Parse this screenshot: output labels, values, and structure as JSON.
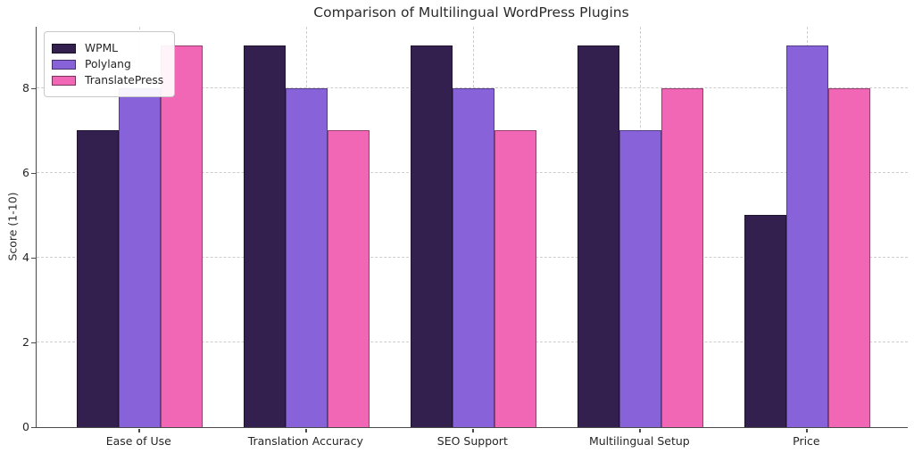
{
  "chart_data": {
    "type": "bar",
    "title": "Comparison of Multilingual WordPress Plugins",
    "xlabel": "",
    "ylabel": "Score (1-10)",
    "categories": [
      "Ease of Use",
      "Translation Accuracy",
      "SEO Support",
      "Multilingual Setup",
      "Price"
    ],
    "series": [
      {
        "name": "WPML",
        "color": "#33204f",
        "values": [
          7,
          9,
          9,
          9,
          5
        ]
      },
      {
        "name": "Polylang",
        "color": "#8862d8",
        "values": [
          8,
          8,
          8,
          7,
          9
        ]
      },
      {
        "name": "TranslatePress",
        "color": "#f166b5",
        "values": [
          9,
          7,
          7,
          8,
          8
        ]
      }
    ],
    "ylim": [
      0,
      9.45
    ],
    "yticks": [
      0,
      2,
      4,
      6,
      8
    ],
    "grid": true,
    "grid_style": "dashed",
    "grid_color": "#cdcdcd",
    "legend_position": "upper left",
    "background_color": "#ffffff",
    "text_color": "#2b2b2b"
  }
}
